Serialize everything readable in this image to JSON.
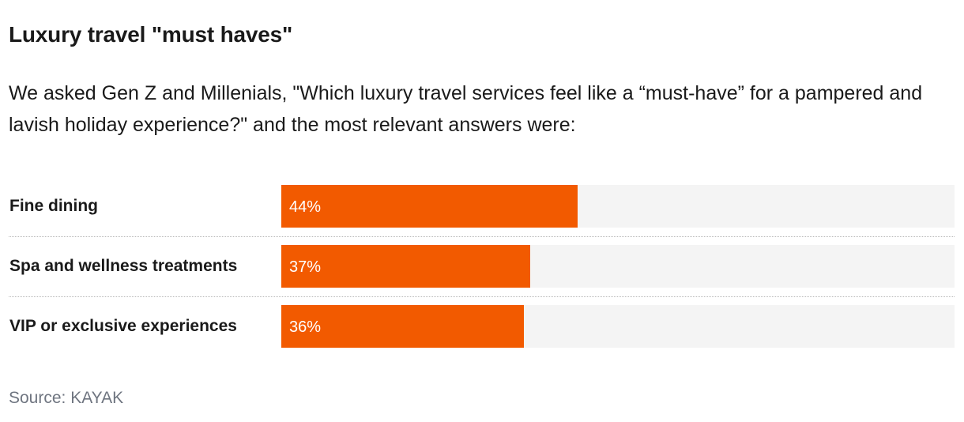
{
  "title": "Luxury travel \"must haves\"",
  "subtitle": "We asked Gen Z and Millenials, \"Which luxury travel services feel like a “must-have” for a pampered and lavish holiday experience?\" and the most relevant answers were:",
  "source": "Source: KAYAK",
  "colors": {
    "bar": "#f25a00",
    "track": "#f4f4f4"
  },
  "chart_data": {
    "type": "bar",
    "orientation": "horizontal",
    "title": "Luxury travel \"must haves\"",
    "xlabel": "",
    "ylabel": "",
    "xlim": [
      0,
      100
    ],
    "unit": "%",
    "categories": [
      "Fine dining",
      "Spa and wellness treatments",
      "VIP or exclusive experiences"
    ],
    "values": [
      44,
      37,
      36
    ],
    "value_labels": [
      "44%",
      "37%",
      "36%"
    ]
  }
}
